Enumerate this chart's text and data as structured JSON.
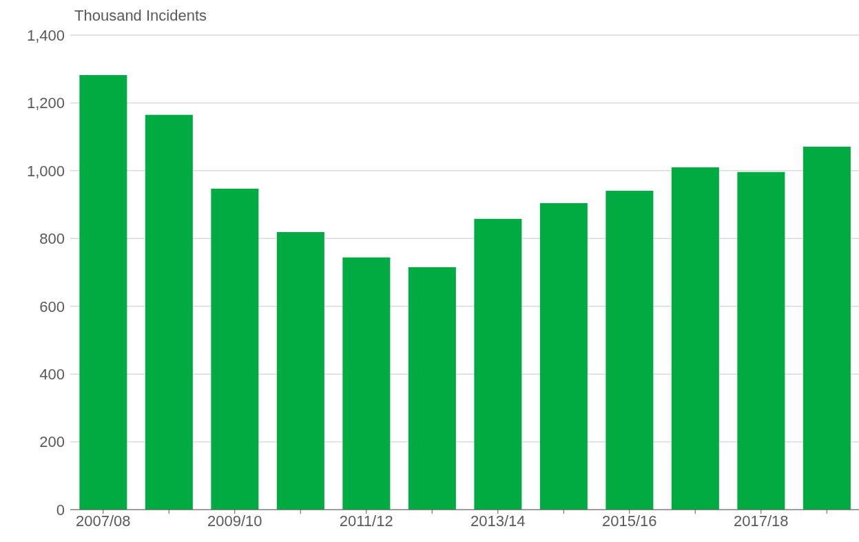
{
  "chart_data": {
    "type": "bar",
    "ylabel": "Thousand Incidents",
    "categories": [
      "2007/08",
      null,
      "2009/10",
      null,
      "2011/12",
      null,
      "2013/14",
      null,
      "2015/16",
      null,
      "2017/18",
      null
    ],
    "values": [
      1282,
      1165,
      947,
      819,
      744,
      715,
      858,
      904,
      941,
      1010,
      996,
      1071
    ],
    "color": "#00ac41",
    "ylim": [
      0,
      1400
    ],
    "yticks": [
      0,
      200,
      400,
      600,
      800,
      {
        "value": 1000,
        "label": "1,000"
      },
      {
        "value": 1200,
        "label": "1,200"
      },
      {
        "value": 1400,
        "label": "1,400"
      }
    ],
    "grid": "y"
  }
}
